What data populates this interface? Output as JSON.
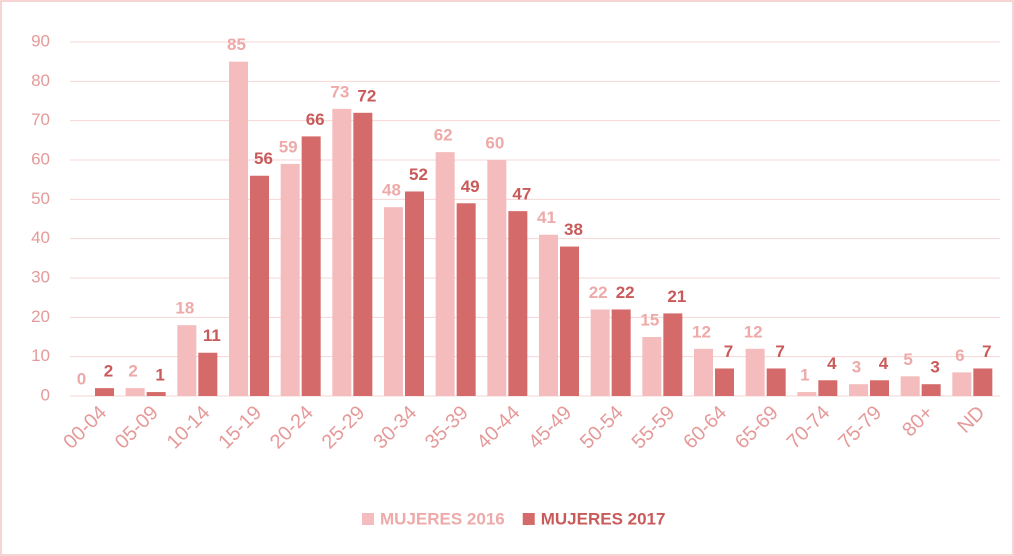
{
  "chart_data": {
    "type": "bar",
    "categories": [
      "00-04",
      "05-09",
      "10-14",
      "15-19",
      "20-24",
      "25-29",
      "30-34",
      "35-39",
      "40-44",
      "45-49",
      "50-54",
      "55-59",
      "60-64",
      "65-69",
      "70-74",
      "75-79",
      "80+",
      "ND"
    ],
    "series": [
      {
        "name": "MUJERES 2016",
        "color": "#f4bcbc",
        "values": [
          0,
          2,
          18,
          85,
          59,
          73,
          48,
          62,
          60,
          41,
          22,
          15,
          12,
          12,
          1,
          3,
          5,
          6
        ]
      },
      {
        "name": "MUJERES 2017",
        "color": "#d46a6a",
        "values": [
          2,
          1,
          11,
          56,
          66,
          72,
          52,
          49,
          47,
          38,
          22,
          21,
          7,
          7,
          4,
          4,
          3,
          7
        ]
      }
    ],
    "ylim": [
      0,
      90
    ],
    "yticks": [
      0,
      10,
      20,
      30,
      40,
      50,
      60,
      70,
      80,
      90
    ],
    "grid": true,
    "legend": "bottom"
  }
}
